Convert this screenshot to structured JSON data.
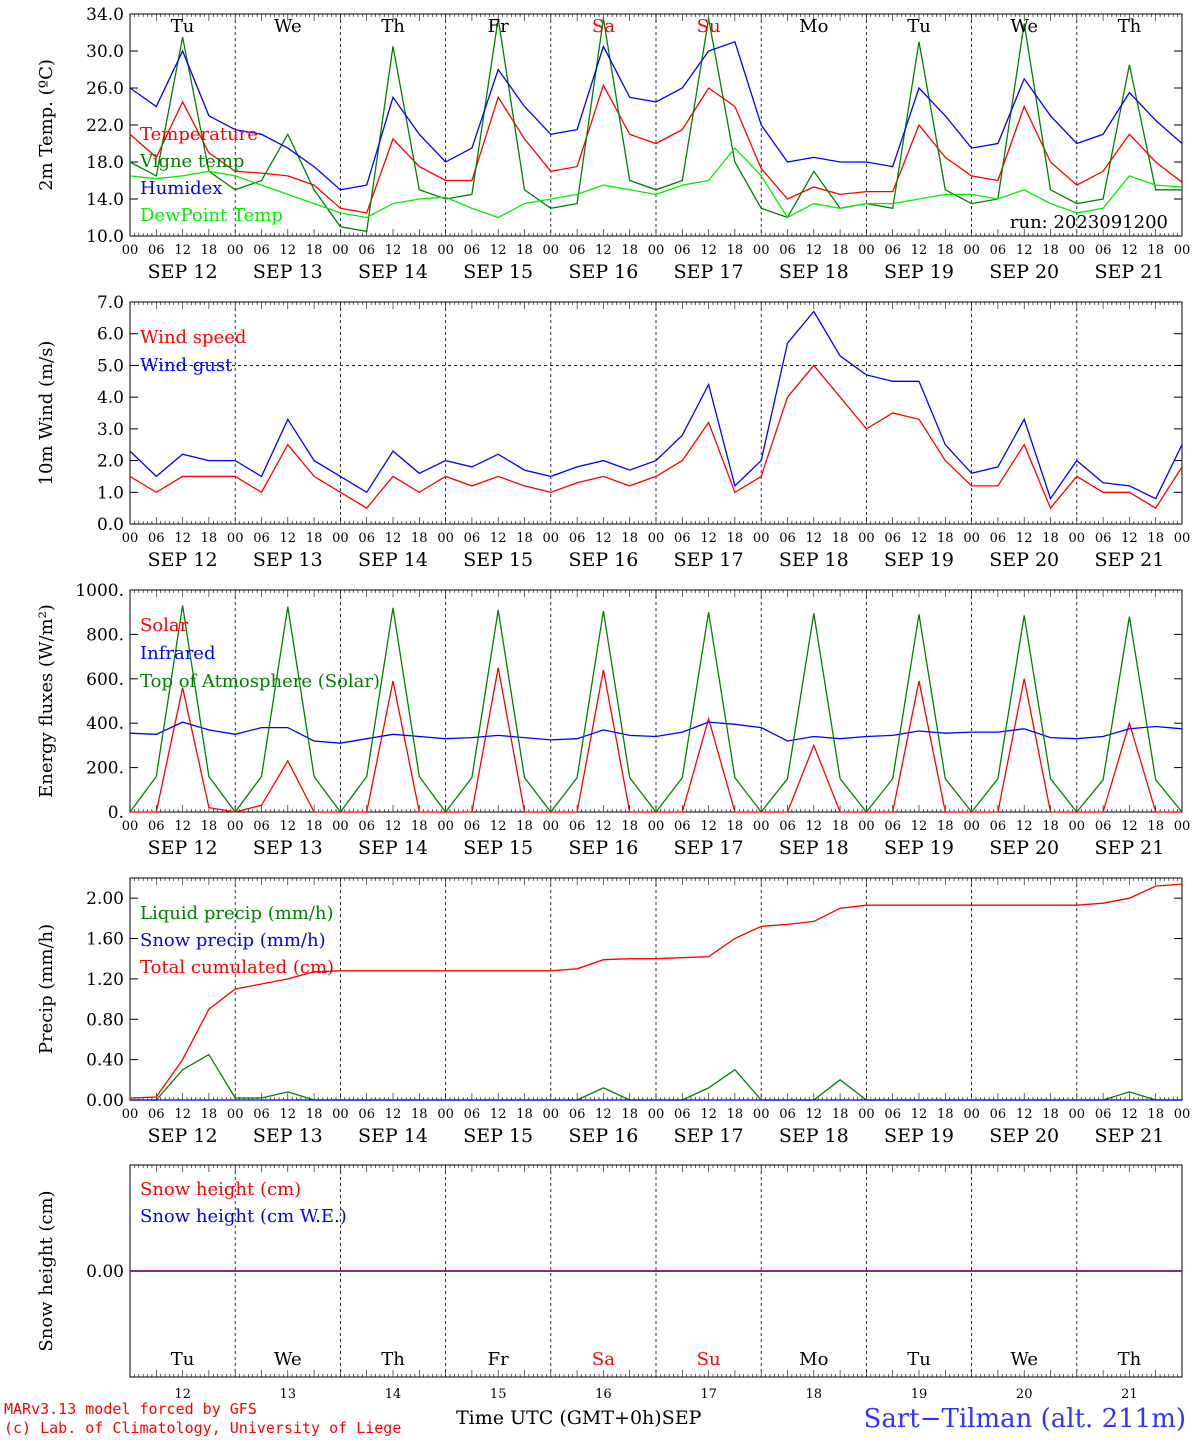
{
  "run_label": "run: 2023091200",
  "days": [
    {
      "abbr": "Tu",
      "date_label": "SEP 12",
      "day_num": "12",
      "weekend": false
    },
    {
      "abbr": "We",
      "date_label": "SEP 13",
      "day_num": "13",
      "weekend": false
    },
    {
      "abbr": "Th",
      "date_label": "SEP 14",
      "day_num": "14",
      "weekend": false
    },
    {
      "abbr": "Fr",
      "date_label": "SEP 15",
      "day_num": "15",
      "weekend": false
    },
    {
      "abbr": "Sa",
      "date_label": "SEP 16",
      "day_num": "16",
      "weekend": true
    },
    {
      "abbr": "Su",
      "date_label": "SEP 17",
      "day_num": "17",
      "weekend": true
    },
    {
      "abbr": "Mo",
      "date_label": "SEP 18",
      "day_num": "18",
      "weekend": false
    },
    {
      "abbr": "Tu",
      "date_label": "SEP 19",
      "day_num": "19",
      "weekend": false
    },
    {
      "abbr": "We",
      "date_label": "SEP 20",
      "day_num": "20",
      "weekend": false
    },
    {
      "abbr": "Th",
      "date_label": "SEP 21",
      "day_num": "21",
      "weekend": false
    }
  ],
  "hour_ticks": [
    "00",
    "06",
    "12",
    "18"
  ],
  "final_tick": "00",
  "colors": {
    "weekend": "#ff0000",
    "red": "#ff0000",
    "green": "#008000",
    "blue": "#0000ff",
    "lightgreen": "#00ee00",
    "purple": "#800080",
    "title": "#3333ff"
  },
  "chart_data": [
    {
      "type": "line",
      "ylabel": "2m Temp. (ºC)",
      "ylim": [
        10,
        34
      ],
      "yticks": [
        "10.0",
        "14.0",
        "18.0",
        "22.0",
        "26.0",
        "30.0",
        "34.0"
      ],
      "grid": "vertical day lines",
      "x": [
        0,
        6,
        12,
        18,
        24,
        30,
        36,
        42,
        48,
        54,
        60,
        66,
        72,
        78,
        84,
        90,
        96,
        102,
        108,
        114,
        120,
        126,
        132,
        138,
        144,
        150,
        156,
        162,
        168,
        174,
        180,
        186,
        192,
        198,
        204,
        210,
        216,
        222,
        228,
        234,
        240
      ],
      "series": [
        {
          "name": "Temperature",
          "color": "#ff0000",
          "values": [
            21,
            18.5,
            24.5,
            19,
            17,
            16.8,
            16.5,
            15.5,
            13,
            12.5,
            20.5,
            17.5,
            16,
            16,
            25,
            20.5,
            17,
            17.5,
            26.3,
            21,
            20,
            21.5,
            26,
            24,
            17.3,
            14,
            15.3,
            14.5,
            14.8,
            14.8,
            22,
            18.5,
            16.5,
            16,
            24,
            18,
            15.5,
            17,
            21,
            18,
            15.8
          ]
        },
        {
          "name": "Vigne temp",
          "color": "#008000",
          "values": [
            18,
            16.5,
            31.5,
            17,
            15,
            16,
            21,
            15,
            11,
            10.5,
            30.5,
            15,
            14,
            14.5,
            33.5,
            15,
            13,
            13.5,
            33.5,
            16,
            15,
            16,
            33.5,
            18,
            13,
            12,
            17,
            13,
            13.5,
            13,
            31,
            15,
            13.5,
            14,
            33,
            15,
            13.5,
            14,
            28.5,
            15,
            15
          ]
        },
        {
          "name": "Humidex",
          "color": "#0000ff",
          "values": [
            26,
            24,
            30,
            23,
            21.5,
            21,
            19.5,
            17.5,
            15,
            15.5,
            25,
            21,
            18,
            19.5,
            28,
            24,
            21,
            21.5,
            30.5,
            25,
            24.5,
            26,
            30,
            31,
            22,
            18,
            18.5,
            18,
            18,
            17.5,
            26,
            23,
            19.5,
            20,
            27,
            23,
            20,
            21,
            25.5,
            22.5,
            20
          ]
        },
        {
          "name": "DewPoint Temp",
          "color": "#00ee00",
          "values": [
            16.5,
            16.2,
            16.5,
            17,
            16.5,
            15.5,
            14.5,
            13.5,
            12.5,
            12,
            13.5,
            14,
            14.2,
            13,
            12,
            13.5,
            14,
            14.5,
            15.5,
            15,
            14.5,
            15.5,
            16,
            19.5,
            16.5,
            12,
            13.5,
            13,
            13.5,
            13.5,
            14,
            14.5,
            14.5,
            14,
            15,
            13.5,
            12.5,
            13,
            16.5,
            15.5,
            15.3
          ]
        }
      ]
    },
    {
      "type": "line",
      "ylabel": "10m Wind (m/s)",
      "ylim": [
        0,
        7
      ],
      "yticks": [
        "0.0",
        "1.0",
        "2.0",
        "3.0",
        "4.0",
        "5.0",
        "6.0",
        "7.0"
      ],
      "grid": "dashed line at 5.0",
      "x": [
        0,
        6,
        12,
        18,
        24,
        30,
        36,
        42,
        48,
        54,
        60,
        66,
        72,
        78,
        84,
        90,
        96,
        102,
        108,
        114,
        120,
        126,
        132,
        138,
        144,
        150,
        156,
        162,
        168,
        174,
        180,
        186,
        192,
        198,
        204,
        210,
        216,
        222,
        228,
        234,
        240
      ],
      "series": [
        {
          "name": "Wind speed",
          "color": "#ff0000",
          "values": [
            1.5,
            1,
            1.5,
            1.5,
            1.5,
            1,
            2.5,
            1.5,
            1,
            0.5,
            1.5,
            1,
            1.5,
            1.2,
            1.5,
            1.2,
            1,
            1.3,
            1.5,
            1.2,
            1.5,
            2,
            3.2,
            1,
            1.5,
            4,
            5,
            4,
            3,
            3.5,
            3.3,
            2,
            1.2,
            1.2,
            2.5,
            0.5,
            1.5,
            1,
            1,
            0.5,
            1.8
          ]
        },
        {
          "name": "Wind gust",
          "color": "#0000ff",
          "values": [
            2.3,
            1.5,
            2.2,
            2,
            2,
            1.5,
            3.3,
            2,
            1.5,
            1,
            2.3,
            1.6,
            2,
            1.8,
            2.2,
            1.7,
            1.5,
            1.8,
            2,
            1.7,
            2,
            2.8,
            4.4,
            1.2,
            2,
            5.7,
            6.7,
            5.3,
            4.7,
            4.5,
            4.5,
            2.5,
            1.6,
            1.8,
            3.3,
            0.8,
            2,
            1.3,
            1.2,
            0.8,
            2.5
          ]
        }
      ]
    },
    {
      "type": "line",
      "ylabel": "Energy fluxes (W/m²)",
      "ylim": [
        0,
        1000
      ],
      "yticks": [
        "0.",
        "200.",
        "400.",
        "600.",
        "800.",
        "1000."
      ],
      "x": [
        0,
        6,
        12,
        18,
        24,
        30,
        36,
        42,
        48,
        54,
        60,
        66,
        72,
        78,
        84,
        90,
        96,
        102,
        108,
        114,
        120,
        126,
        132,
        138,
        144,
        150,
        156,
        162,
        168,
        174,
        180,
        186,
        192,
        198,
        204,
        210,
        216,
        222,
        228,
        234,
        240
      ],
      "series": [
        {
          "name": "Solar",
          "color": "#ff0000",
          "values": [
            0,
            0,
            560,
            20,
            0,
            30,
            230,
            0,
            0,
            0,
            590,
            0,
            0,
            0,
            650,
            0,
            0,
            0,
            640,
            0,
            0,
            0,
            420,
            0,
            0,
            0,
            300,
            0,
            0,
            0,
            590,
            0,
            0,
            0,
            600,
            0,
            0,
            0,
            400,
            0,
            0
          ]
        },
        {
          "name": "Infrared",
          "color": "#0000ff",
          "values": [
            355,
            350,
            405,
            370,
            350,
            380,
            380,
            320,
            310,
            330,
            350,
            340,
            330,
            335,
            345,
            335,
            325,
            330,
            370,
            345,
            340,
            360,
            405,
            395,
            380,
            320,
            340,
            330,
            340,
            345,
            365,
            355,
            360,
            360,
            375,
            335,
            330,
            340,
            375,
            385,
            375
          ]
        },
        {
          "name": "Top of Atmosphere (Solar)",
          "color": "#008000",
          "values": [
            0,
            160,
            930,
            160,
            0,
            160,
            925,
            160,
            0,
            160,
            920,
            160,
            0,
            155,
            910,
            155,
            0,
            155,
            905,
            155,
            0,
            155,
            900,
            155,
            0,
            150,
            895,
            150,
            0,
            150,
            890,
            150,
            0,
            150,
            885,
            150,
            0,
            145,
            880,
            145,
            0
          ]
        }
      ]
    },
    {
      "type": "line",
      "ylabel": "Precip (mm/h)",
      "ylim": [
        0,
        2.2
      ],
      "yticks": [
        "0.00",
        "0.40",
        "0.80",
        "1.20",
        "1.60",
        "2.00"
      ],
      "x": [
        0,
        6,
        12,
        18,
        24,
        30,
        36,
        42,
        48,
        54,
        60,
        66,
        72,
        78,
        84,
        90,
        96,
        102,
        108,
        114,
        120,
        126,
        132,
        138,
        144,
        150,
        156,
        162,
        168,
        174,
        180,
        186,
        192,
        198,
        204,
        210,
        216,
        222,
        228,
        234,
        240
      ],
      "series": [
        {
          "name": "Liquid precip (mm/h)",
          "color": "#008000",
          "values": [
            0,
            0,
            0.3,
            0.45,
            0.02,
            0.02,
            0.08,
            0,
            0,
            0,
            0,
            0,
            0,
            0,
            0,
            0,
            0,
            0,
            0.12,
            0,
            0,
            0,
            0.12,
            0.3,
            0,
            0,
            0,
            0.2,
            0,
            0,
            0,
            0,
            0,
            0,
            0,
            0,
            0,
            0,
            0.08,
            0,
            0
          ]
        },
        {
          "name": "Snow precip (mm/h)",
          "color": "#0000ff",
          "values": [
            0,
            0,
            0,
            0,
            0,
            0,
            0,
            0,
            0,
            0,
            0,
            0,
            0,
            0,
            0,
            0,
            0,
            0,
            0,
            0,
            0,
            0,
            0,
            0,
            0,
            0,
            0,
            0,
            0,
            0,
            0,
            0,
            0,
            0,
            0,
            0,
            0,
            0,
            0,
            0,
            0
          ]
        },
        {
          "name": "Total cumulated (cm)",
          "color": "#ff0000",
          "values": [
            0.02,
            0.03,
            0.4,
            0.9,
            1.1,
            1.15,
            1.2,
            1.27,
            1.28,
            1.28,
            1.28,
            1.28,
            1.28,
            1.28,
            1.28,
            1.28,
            1.28,
            1.3,
            1.39,
            1.4,
            1.4,
            1.41,
            1.42,
            1.6,
            1.72,
            1.74,
            1.77,
            1.9,
            1.93,
            1.93,
            1.93,
            1.93,
            1.93,
            1.93,
            1.93,
            1.93,
            1.93,
            1.95,
            2.0,
            2.12,
            2.14
          ]
        }
      ]
    },
    {
      "type": "line",
      "ylabel": "Snow height (cm)",
      "ylim": [
        -1,
        1
      ],
      "yticks": [
        "0.00"
      ],
      "x": [
        0,
        240
      ],
      "series": [
        {
          "name": "Snow height (cm)",
          "color": "#ff0000",
          "values": [
            0,
            0
          ]
        },
        {
          "name": "Snow height (cm W.E.)",
          "color": "#0000ff",
          "values": [
            0,
            0
          ]
        }
      ]
    }
  ],
  "footer": {
    "model_line1": "MARv3.13 model forced by GFS",
    "model_line2": "(c) Lab. of Climatology, University of Liege",
    "time_axis_label": "Time UTC (GMT+0h)",
    "month": "SEP",
    "station": "Sart−Tilman (alt. 211m)"
  }
}
